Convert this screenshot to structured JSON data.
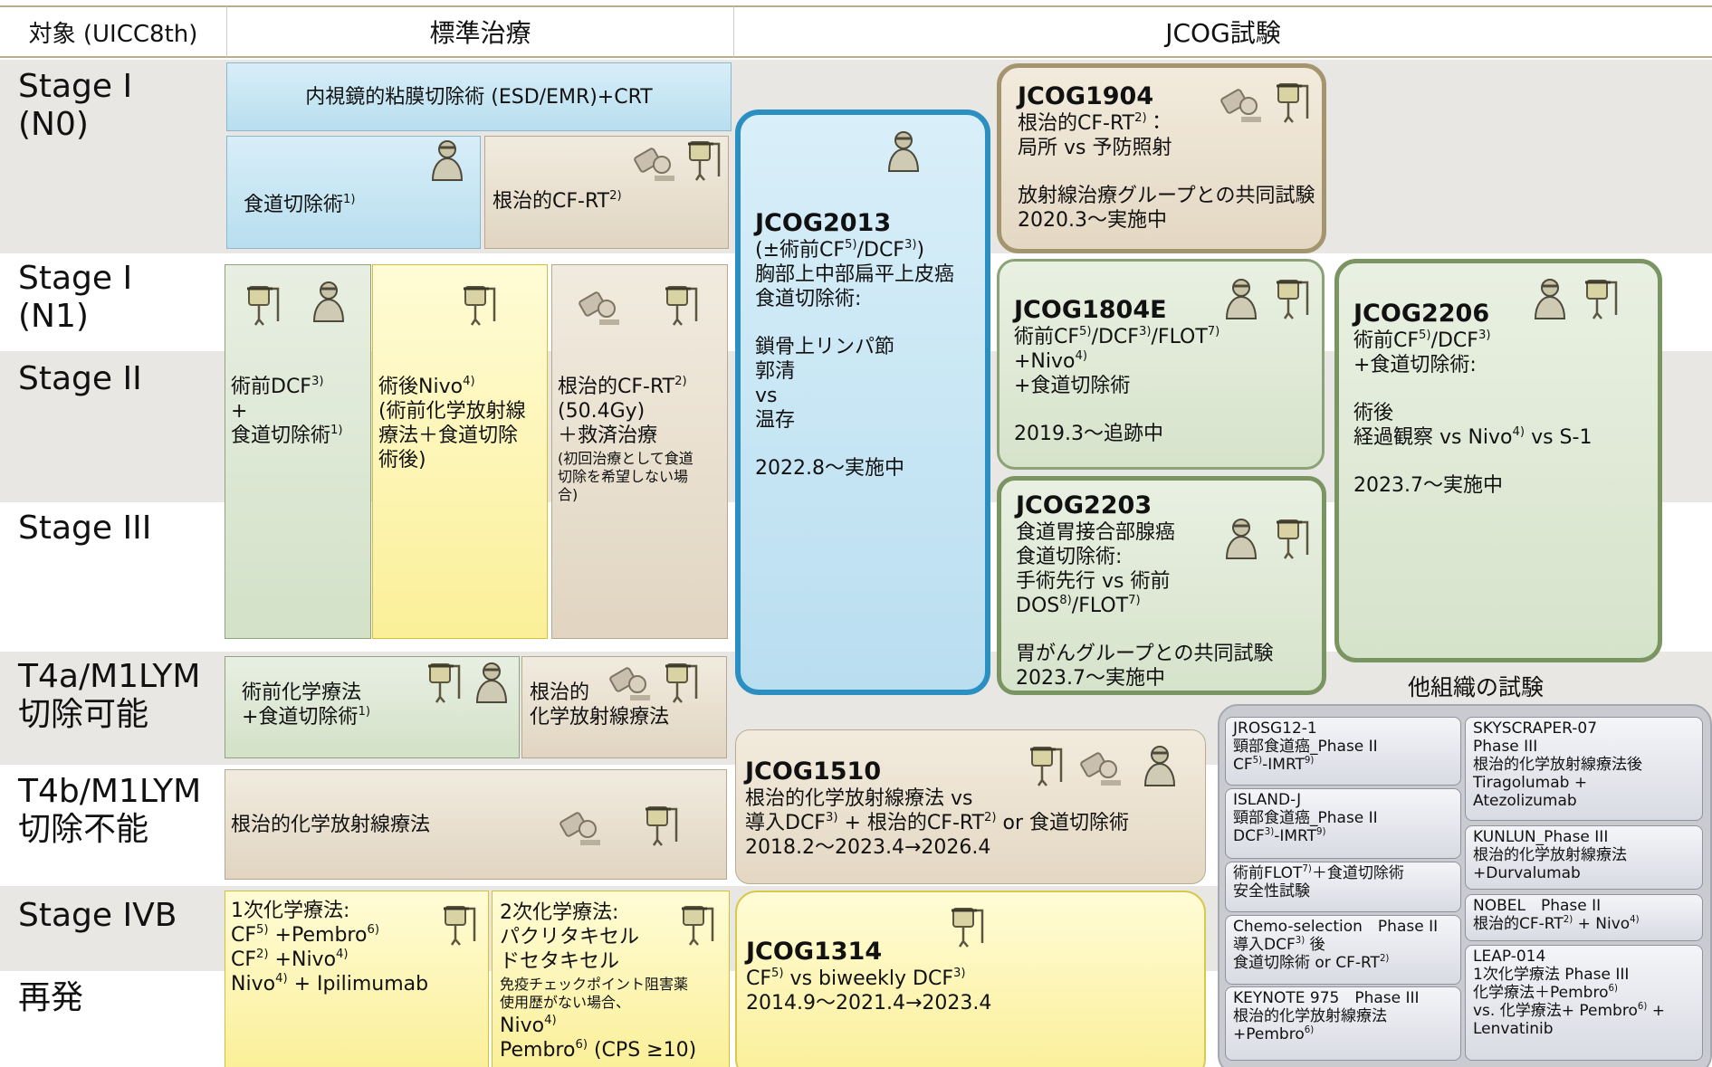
{
  "header": {
    "target": "対象 (UICC8th)",
    "standard": "標準治療",
    "jcog": "JCOG試験"
  },
  "stages": [
    [
      "Stage I",
      "(N0)"
    ],
    [
      "Stage I",
      "(N1)"
    ],
    [
      "Stage II"
    ],
    [
      "Stage III"
    ],
    [
      "T4a/M1LYM",
      "切除可能"
    ],
    [
      "T4b/M1LYM",
      "切除不能"
    ],
    [
      "Stage IVB"
    ],
    [
      "再発"
    ]
  ],
  "standard": [
    {
      "paras": [
        [
          [
            "内視鏡的粘膜切除術 (ESD/EMR)+CRT"
          ]
        ]
      ]
    },
    {
      "paras": [
        [
          [
            "食道切除術",
            "1)"
          ]
        ]
      ]
    },
    {
      "paras": [
        [
          [
            "根治的CF-RT",
            "2)"
          ]
        ]
      ]
    },
    {
      "paras": [
        [
          [
            "術前DCF",
            "3)"
          ],
          [
            "+"
          ],
          [
            "食道切除術",
            "1)"
          ]
        ]
      ]
    },
    {
      "paras": [
        [
          [
            "術後Nivo",
            "4)"
          ],
          [
            "(術前化学放射線"
          ],
          [
            "療法＋食道切除"
          ],
          [
            "術後)"
          ]
        ]
      ]
    },
    {
      "paras": [
        [
          [
            "根治的CF-RT",
            "2)"
          ],
          [
            "(50.4Gy)"
          ],
          [
            "＋救済治療"
          ]
        ],
        [
          [
            "(初回治療として食道"
          ],
          [
            "切除を希望しない場"
          ],
          [
            "合)"
          ]
        ]
      ]
    },
    {
      "paras": [
        [
          [
            "術前化学療法"
          ],
          [
            "+食道切除術",
            "1)"
          ]
        ]
      ]
    },
    {
      "paras": [
        [
          [
            "根治的"
          ],
          [
            "化学放射線療法"
          ]
        ]
      ]
    },
    {
      "paras": [
        [
          [
            "根治的化学放射線療法"
          ]
        ]
      ]
    },
    {
      "paras": [
        [
          [
            "1次化学療法:"
          ],
          [
            "CF",
            "5)",
            " +Pembro",
            "6)"
          ],
          [
            "CF",
            "2)",
            " +Nivo",
            "4)"
          ],
          [
            "Nivo",
            "4)",
            " + Ipilimumab"
          ]
        ]
      ]
    },
    {
      "paras": [
        [
          [
            "2次化学療法:"
          ],
          [
            "パクリタキセル"
          ],
          [
            "ドセタキセル"
          ]
        ],
        [
          [
            "免疫チェックポイント阻害薬"
          ],
          [
            "使用歴がない場合、"
          ]
        ],
        [
          [
            "Nivo",
            "4)"
          ],
          [
            "Pembro",
            "6)",
            " (CPS ≥10)"
          ]
        ]
      ]
    }
  ],
  "jcog": [
    {
      "id": "JCOG2013",
      "paras": [
        [
          [
            "(±術前CF",
            "5)",
            "/DCF",
            "3)",
            ")"
          ],
          [
            "胸部上中部扁平上皮癌"
          ],
          [
            "食道切除術:"
          ]
        ],
        [
          [
            "鎖骨上リンパ節"
          ],
          [
            "郭清"
          ],
          [
            "vs"
          ],
          [
            "温存"
          ]
        ],
        [
          [
            "2022.8～実施中"
          ]
        ]
      ]
    },
    {
      "id": "JCOG1904",
      "paras": [
        [
          [
            "根治的CF-RT",
            "2)",
            "："
          ],
          [
            "局所 vs 予防照射"
          ]
        ],
        [
          [
            "放射線治療グループとの共同試験"
          ],
          [
            "2020.3～実施中"
          ]
        ]
      ]
    },
    {
      "id": "JCOG1804E",
      "paras": [
        [
          [
            "術前CF",
            "5)",
            "/DCF",
            "3)",
            "/FLOT",
            "7)"
          ],
          [
            "+Nivo",
            "4)"
          ],
          [
            "+食道切除術"
          ]
        ],
        [
          [
            "2019.3～追跡中"
          ]
        ]
      ]
    },
    {
      "id": "JCOG2203",
      "paras": [
        [
          [
            "食道胃接合部腺癌"
          ],
          [
            "食道切除術:"
          ],
          [
            "手術先行 vs 術前"
          ],
          [
            "DOS",
            "8)",
            "/FLOT",
            "7)"
          ]
        ],
        [
          [
            "胃がんグループとの共同試験"
          ],
          [
            "2023.7～実施中"
          ]
        ]
      ]
    },
    {
      "id": "JCOG2206",
      "paras": [
        [
          [
            "術前CF",
            "5)",
            "/DCF",
            "3)"
          ],
          [
            "+食道切除術:"
          ]
        ],
        [
          [
            "術後"
          ],
          [
            "経過観察 vs Nivo",
            "4)",
            " vs S-1"
          ]
        ],
        [
          [
            "2023.7～実施中"
          ]
        ]
      ]
    },
    {
      "id": "JCOG1510",
      "paras": [
        [
          [
            "根治的化学放射線療法 vs"
          ],
          [
            "導入DCF",
            "3)",
            " + 根治的CF-RT",
            "2)",
            " or 食道切除術"
          ],
          [
            "2018.2～2023.4→2026.4"
          ]
        ]
      ]
    },
    {
      "id": "JCOG1314",
      "paras": [
        [
          [
            "CF",
            "5)",
            " vs biweekly DCF",
            "3)"
          ],
          [
            "2014.9～2021.4→2023.4"
          ]
        ]
      ]
    }
  ],
  "other": {
    "title": "他組織の試験",
    "trials": [
      {
        "paras": [
          [
            [
              "JROSG12-1"
            ],
            [
              "頸部食道癌_Phase II"
            ],
            [
              "CF",
              "5)",
              "-IMRT",
              "9)"
            ]
          ]
        ]
      },
      {
        "paras": [
          [
            [
              "ISLAND-J"
            ],
            [
              "頸部食道癌_Phase II"
            ],
            [
              "DCF",
              "3)",
              "-IMRT",
              "9)"
            ]
          ]
        ]
      },
      {
        "paras": [
          [
            [
              "術前FLOT",
              "7)",
              "＋食道切除術"
            ],
            [
              "安全性試験"
            ]
          ]
        ]
      },
      {
        "paras": [
          [
            [
              "Chemo-selection　Phase II"
            ],
            [
              "導入DCF",
              "3)",
              " 後"
            ],
            [
              "食道切除術 or CF-RT",
              "2)"
            ]
          ]
        ]
      },
      {
        "paras": [
          [
            [
              "KEYNOTE 975　Phase III"
            ],
            [
              "根治的化学放射線療法"
            ],
            [
              "+Pembro",
              "6)"
            ]
          ]
        ]
      },
      {
        "paras": [
          [
            [
              "SKYSCRAPER-07"
            ],
            [
              "Phase III"
            ],
            [
              "根治的化学放射線療法後"
            ],
            [
              "Tiragolumab +"
            ],
            [
              "Atezolizumab"
            ]
          ]
        ]
      },
      {
        "paras": [
          [
            [
              "KUNLUN_Phase III"
            ],
            [
              "根治的化学放射線療法"
            ],
            [
              "+Durvalumab"
            ]
          ]
        ]
      },
      {
        "paras": [
          [
            [
              "NOBEL　Phase II"
            ],
            [
              "根治的CF-RT",
              "2)",
              " + Nivo",
              "4)"
            ]
          ]
        ]
      },
      {
        "paras": [
          [
            [
              "LEAP-014"
            ],
            [
              "1次化学療法 Phase III"
            ],
            [
              "化学療法＋Pembro",
              "6)"
            ],
            [
              "vs. 化学療法+ Pembro",
              "6)",
              " +"
            ],
            [
              "Lenvatinib"
            ]
          ]
        ]
      }
    ]
  }
}
